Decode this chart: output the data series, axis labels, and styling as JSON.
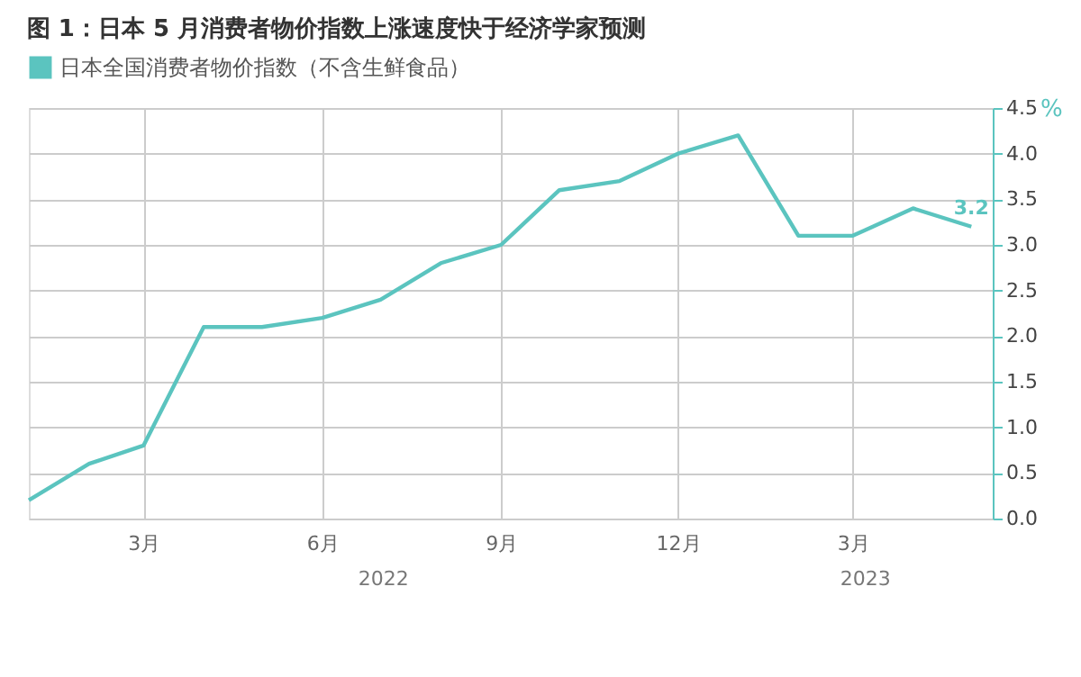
{
  "chart_data": {
    "type": "line",
    "title": "图 1：日本 5 月消费者物价指数上涨速度快于经济学家预测",
    "ylabel": "%",
    "x": [
      "2022-01",
      "2022-02",
      "2022-03",
      "2022-04",
      "2022-05",
      "2022-06",
      "2022-07",
      "2022-08",
      "2022-09",
      "2022-10",
      "2022-11",
      "2022-12",
      "2023-01",
      "2023-02",
      "2023-03",
      "2023-04",
      "2023-05"
    ],
    "series": [
      {
        "name": "日本全国消费者物价指数（不含生鲜食品）",
        "color": "#5bc4bf",
        "values": [
          0.2,
          0.6,
          0.8,
          2.1,
          2.1,
          2.2,
          2.4,
          2.8,
          3.0,
          3.6,
          3.7,
          4.0,
          4.2,
          3.1,
          3.1,
          3.4,
          3.2
        ],
        "value_labels": [
          null,
          null,
          null,
          null,
          null,
          null,
          null,
          null,
          null,
          null,
          null,
          null,
          null,
          null,
          null,
          null,
          "3.2"
        ]
      }
    ],
    "xlim": [
      "2022-01",
      "2023-05-12"
    ],
    "xticks": [
      {
        "value": "2022-03",
        "label": "3月"
      },
      {
        "value": "2022-06",
        "label": "6月"
      },
      {
        "value": "2022-09",
        "label": "9月"
      },
      {
        "value": "2022-12",
        "label": "12月"
      },
      {
        "value": "2023-03",
        "label": "3月"
      }
    ],
    "ylim": [
      0,
      4.5
    ],
    "yticks": [
      {
        "value": 0,
        "label": "0.0"
      },
      {
        "value": 0.5,
        "label": "0.5"
      },
      {
        "value": 1,
        "label": "1.0"
      },
      {
        "value": 1.5,
        "label": "1.5"
      },
      {
        "value": 2,
        "label": "2.0"
      },
      {
        "value": 2.5,
        "label": "2.5"
      },
      {
        "value": 3,
        "label": "3.0"
      },
      {
        "value": 3.5,
        "label": "3.5"
      },
      {
        "value": 4,
        "label": "4.0"
      },
      {
        "value": 4.5,
        "label": "4.5"
      }
    ],
    "annotations": [
      "2022",
      "2023"
    ],
    "grid": true,
    "legend": "top left",
    "marker": "none",
    "line_style": "solid"
  }
}
